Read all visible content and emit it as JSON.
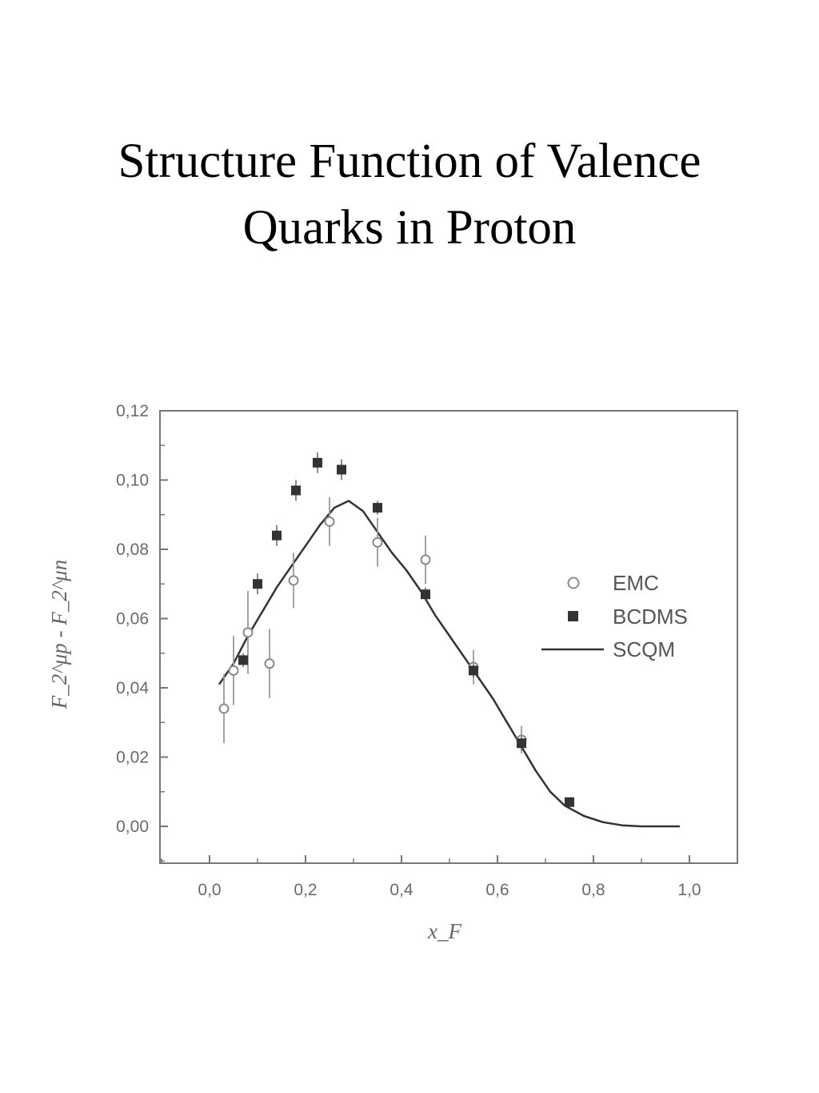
{
  "slide": {
    "title_line1": "Structure Function of Valence",
    "title_line2": "Quarks in Proton"
  },
  "colors": {
    "axis": "#777777",
    "marker": "#333333",
    "emc_marker": "#8a8a8a",
    "curve": "#333333",
    "text": "#000000"
  },
  "chart_data": {
    "type": "scatter",
    "xlabel": "x_F",
    "ylabel": "F_2^μp - F_2^μn",
    "xlim": [
      -0.1,
      1.1
    ],
    "ylim": [
      -0.01,
      0.12
    ],
    "xticks": [
      {
        "value": 0.0,
        "label": "0,0"
      },
      {
        "value": 0.2,
        "label": "0,2"
      },
      {
        "value": 0.4,
        "label": "0,4"
      },
      {
        "value": 0.6,
        "label": "0,6"
      },
      {
        "value": 0.8,
        "label": "0,8"
      },
      {
        "value": 1.0,
        "label": "1,0"
      }
    ],
    "yticks": [
      {
        "value": 0.0,
        "label": "0,00"
      },
      {
        "value": 0.02,
        "label": "0,02"
      },
      {
        "value": 0.04,
        "label": "0,04"
      },
      {
        "value": 0.06,
        "label": "0,06"
      },
      {
        "value": 0.08,
        "label": "0,08"
      },
      {
        "value": 0.1,
        "label": "0,10"
      },
      {
        "value": 0.12,
        "label": "0,12"
      }
    ],
    "legend_position": "right",
    "series": [
      {
        "name": "EMC",
        "marker": "open-circle",
        "points": [
          {
            "x": 0.03,
            "y": 0.034,
            "err": 0.01
          },
          {
            "x": 0.05,
            "y": 0.045,
            "err": 0.01
          },
          {
            "x": 0.08,
            "y": 0.056,
            "err": 0.012
          },
          {
            "x": 0.125,
            "y": 0.047,
            "err": 0.01
          },
          {
            "x": 0.175,
            "y": 0.071,
            "err": 0.008
          },
          {
            "x": 0.25,
            "y": 0.088,
            "err": 0.007
          },
          {
            "x": 0.35,
            "y": 0.082,
            "err": 0.007
          },
          {
            "x": 0.45,
            "y": 0.077,
            "err": 0.007
          },
          {
            "x": 0.55,
            "y": 0.046,
            "err": 0.005
          },
          {
            "x": 0.65,
            "y": 0.025,
            "err": 0.004
          }
        ]
      },
      {
        "name": "BCDMS",
        "marker": "filled-square",
        "points": [
          {
            "x": 0.07,
            "y": 0.048,
            "err": 0.002
          },
          {
            "x": 0.1,
            "y": 0.07,
            "err": 0.003
          },
          {
            "x": 0.14,
            "y": 0.084,
            "err": 0.003
          },
          {
            "x": 0.18,
            "y": 0.097,
            "err": 0.003
          },
          {
            "x": 0.225,
            "y": 0.105,
            "err": 0.003
          },
          {
            "x": 0.275,
            "y": 0.103,
            "err": 0.003
          },
          {
            "x": 0.35,
            "y": 0.092,
            "err": 0.002
          },
          {
            "x": 0.45,
            "y": 0.067,
            "err": 0.002
          },
          {
            "x": 0.55,
            "y": 0.045,
            "err": 0.002
          },
          {
            "x": 0.65,
            "y": 0.024,
            "err": 0.002
          },
          {
            "x": 0.75,
            "y": 0.007,
            "err": 0.001
          }
        ]
      },
      {
        "name": "SCQM",
        "marker": "line",
        "points": [
          {
            "x": 0.02,
            "y": 0.041
          },
          {
            "x": 0.05,
            "y": 0.047
          },
          {
            "x": 0.08,
            "y": 0.055
          },
          {
            "x": 0.11,
            "y": 0.062
          },
          {
            "x": 0.14,
            "y": 0.069
          },
          {
            "x": 0.17,
            "y": 0.075
          },
          {
            "x": 0.2,
            "y": 0.081
          },
          {
            "x": 0.23,
            "y": 0.087
          },
          {
            "x": 0.26,
            "y": 0.092
          },
          {
            "x": 0.29,
            "y": 0.094
          },
          {
            "x": 0.32,
            "y": 0.091
          },
          {
            "x": 0.35,
            "y": 0.085
          },
          {
            "x": 0.38,
            "y": 0.079
          },
          {
            "x": 0.41,
            "y": 0.074
          },
          {
            "x": 0.44,
            "y": 0.068
          },
          {
            "x": 0.47,
            "y": 0.061
          },
          {
            "x": 0.5,
            "y": 0.055
          },
          {
            "x": 0.53,
            "y": 0.049
          },
          {
            "x": 0.56,
            "y": 0.043
          },
          {
            "x": 0.59,
            "y": 0.037
          },
          {
            "x": 0.62,
            "y": 0.03
          },
          {
            "x": 0.65,
            "y": 0.023
          },
          {
            "x": 0.68,
            "y": 0.016
          },
          {
            "x": 0.71,
            "y": 0.01
          },
          {
            "x": 0.74,
            "y": 0.006
          },
          {
            "x": 0.78,
            "y": 0.003
          },
          {
            "x": 0.82,
            "y": 0.0012
          },
          {
            "x": 0.86,
            "y": 0.0003
          },
          {
            "x": 0.9,
            "y": 0.0
          },
          {
            "x": 0.98,
            "y": 0.0
          }
        ]
      }
    ]
  }
}
